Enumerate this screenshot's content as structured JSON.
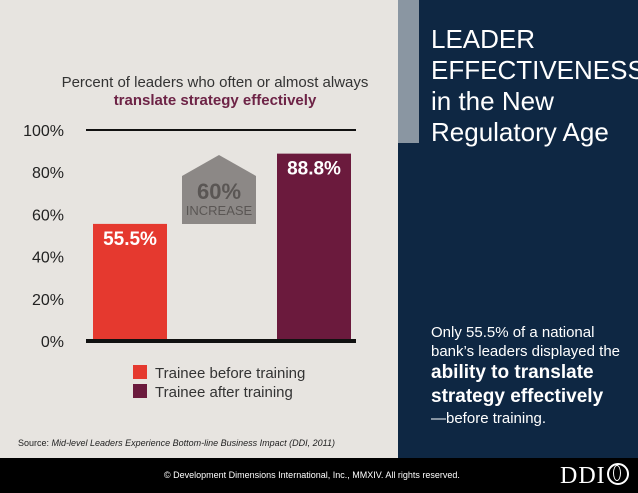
{
  "chart_data": {
    "type": "bar",
    "title": "Percent of leaders who often or almost always",
    "subtitle": "translate strategy effectively",
    "categories": [
      "Trainee before training",
      "Trainee after training"
    ],
    "values": [
      55.5,
      88.8
    ],
    "value_labels": [
      "55.5%",
      "88.8%"
    ],
    "colors": [
      "#e5392f",
      "#6b1a3d"
    ],
    "ylim": [
      0,
      100
    ],
    "yticks": [
      0,
      20,
      40,
      60,
      80,
      100
    ],
    "ytick_labels": [
      "0%",
      "20%",
      "40%",
      "60%",
      "80%",
      "100%"
    ],
    "legend": [
      "Trainee before training",
      "Trainee after training"
    ],
    "legend_position": "bottom",
    "grid": false,
    "annotation": {
      "value": "60%",
      "label": "INCREASE",
      "color": "#8c8886"
    }
  },
  "source": {
    "prefix": "Source: ",
    "text": "Mid-level Leaders Experience Bottom-line Business Impact (DDI, 2011)"
  },
  "panel": {
    "headline": [
      "LEADER",
      "EFFECTIVENESS",
      "in the New",
      "Regulatory Age"
    ],
    "body_lead": "Only 55.5% of a national bank’s leaders displayed the",
    "body_bold": "ability to translate strategy effectively",
    "body_tail": "—before training."
  },
  "footer": {
    "copyright": "© Development Dimensions International, Inc., MMXIV.  All rights reserved.",
    "logo": "DDI"
  }
}
